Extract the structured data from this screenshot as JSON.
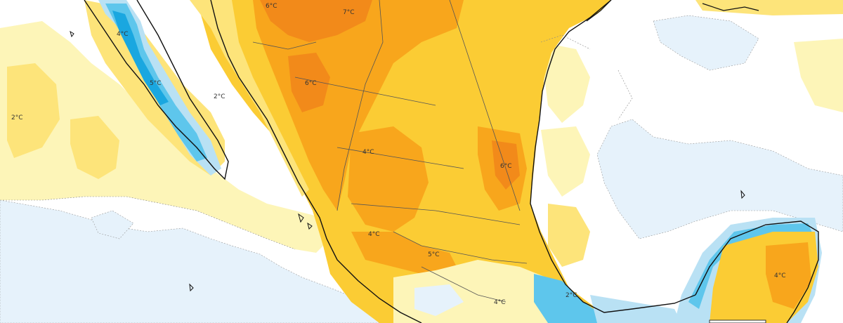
{
  "map": {
    "colors": {
      "ocean_white": "#ffffff",
      "cool_pale": "#e6f2fb",
      "cool_light": "#b9e1f4",
      "cool_mid": "#5ec6ec",
      "cool_strong": "#1aa7e0",
      "warm_pale": "#fdf5b8",
      "warm_light": "#fde47a",
      "warm_mid": "#fbcc34",
      "warm_strong": "#f8a61c",
      "warm_deep": "#f28a1a",
      "coast": "#111111",
      "border": "#555555",
      "contour": "#888888"
    },
    "labels": [
      {
        "id": "label-6c-north",
        "text": "6°C"
      },
      {
        "id": "label-7c-north",
        "text": "7°C"
      },
      {
        "id": "label-4c-baja",
        "text": "4°C"
      },
      {
        "id": "label-5c-baja",
        "text": "5°C"
      },
      {
        "id": "label-2c-sonora",
        "text": "2°C"
      },
      {
        "id": "label-6c-chihuahua",
        "text": "6°C"
      },
      {
        "id": "label-2c-pacific",
        "text": "2°C"
      },
      {
        "id": "label-4c-central",
        "text": "4°C"
      },
      {
        "id": "label-6c-east",
        "text": "6°C"
      },
      {
        "id": "label-4c-south",
        "text": "4°C"
      },
      {
        "id": "label-5c-south",
        "text": "5°C"
      },
      {
        "id": "label-4c-yucatan",
        "text": "4°C"
      },
      {
        "id": "label-2c-gulf",
        "text": "2°C"
      },
      {
        "id": "label-4c-oaxaca",
        "text": "4°C"
      }
    ]
  }
}
